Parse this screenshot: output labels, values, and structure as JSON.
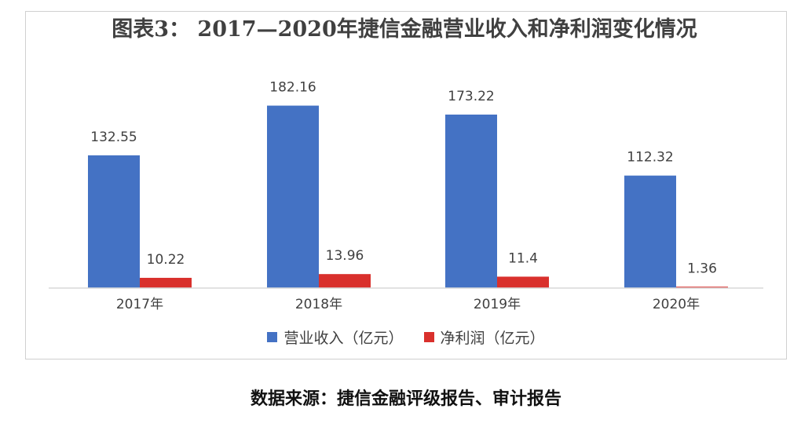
{
  "chart_data": {
    "type": "bar",
    "title": "图表3： 2017—2020年捷信金融营业收入和净利润变化情况",
    "categories": [
      "2017年",
      "2018年",
      "2019年",
      "2020年"
    ],
    "series": [
      {
        "name": "营业收入（亿元）",
        "color": "#4472c4",
        "values": [
          132.55,
          182.16,
          173.22,
          112.32
        ],
        "labels": [
          "132.55",
          "182.16",
          "173.22",
          "112.32"
        ]
      },
      {
        "name": "净利润（亿元）",
        "color": "#d9302c",
        "values": [
          10.22,
          13.96,
          11.4,
          1.36
        ],
        "labels": [
          "10.22",
          "13.96",
          "11.4",
          "1.36"
        ]
      }
    ],
    "ylim": [
      0,
      200
    ],
    "grid": false,
    "legend": "bottom"
  },
  "source_note": "数据来源：捷信金融评级报告、审计报告"
}
